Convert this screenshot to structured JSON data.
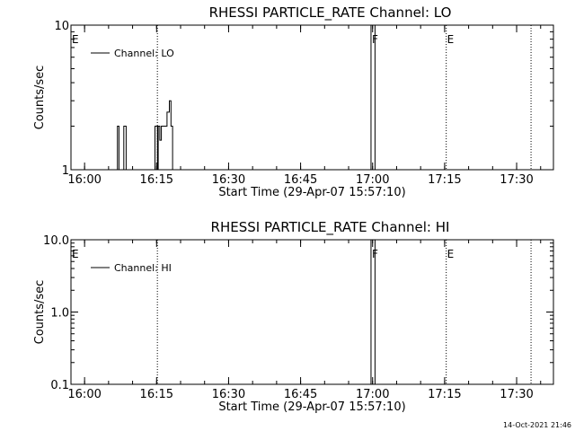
{
  "chart_data": [
    {
      "type": "line",
      "title": "RHESSI PARTICLE_RATE Channel: LO",
      "ylabel": "Counts/sec",
      "xlabel": "Start Time (29-Apr-07 15:57:10)",
      "xlim": [
        "15:57:10",
        "17:37:40"
      ],
      "ylim": [
        1,
        10
      ],
      "yscale": "log",
      "xticks": [
        "16:00",
        "16:15",
        "16:30",
        "16:45",
        "17:00",
        "17:15",
        "17:30"
      ],
      "yticks": [
        "1",
        "10"
      ],
      "legend": {
        "position": "top-left",
        "entries": [
          "Channel: LO"
        ]
      },
      "series": [
        {
          "name": "Channel: LO",
          "points": [
            [
              "16:06:50",
              1
            ],
            [
              "16:06:50",
              2
            ],
            [
              "16:07:10",
              2
            ],
            [
              "16:07:10",
              1
            ],
            [
              "16:08:10",
              1
            ],
            [
              "16:08:10",
              2
            ],
            [
              "16:08:40",
              2
            ],
            [
              "16:08:40",
              1
            ],
            [
              "16:14:40",
              1
            ],
            [
              "16:14:40",
              2
            ],
            [
              "16:15:10",
              2
            ],
            [
              "16:15:10",
              1
            ],
            [
              "16:15:20",
              1
            ],
            [
              "16:15:20",
              2
            ],
            [
              "16:15:40",
              2
            ],
            [
              "16:15:40",
              1.6
            ],
            [
              "16:16:00",
              1.6
            ],
            [
              "16:16:00",
              2
            ],
            [
              "16:17:10",
              2
            ],
            [
              "16:17:10",
              2.5
            ],
            [
              "16:17:40",
              2.5
            ],
            [
              "16:17:40",
              3
            ],
            [
              "16:18:00",
              3
            ],
            [
              "16:18:00",
              2
            ],
            [
              "16:18:20",
              2
            ],
            [
              "16:18:20",
              1
            ]
          ]
        }
      ],
      "vlines": [
        {
          "x": "16:15:10",
          "style": "dotted"
        },
        {
          "x": "16:59:40",
          "style": "solid"
        },
        {
          "x": "17:00:30",
          "style": "solid"
        },
        {
          "x": "17:15:20",
          "style": "dotted"
        },
        {
          "x": "17:33:00",
          "style": "dotted"
        }
      ],
      "markers": [
        {
          "label": "E",
          "x": "15:57:10"
        },
        {
          "label": "F",
          "x": "16:59:40"
        },
        {
          "label": "E",
          "x": "17:15:20"
        }
      ]
    },
    {
      "type": "line",
      "title": "RHESSI PARTICLE_RATE Channel: HI",
      "ylabel": "Counts/sec",
      "xlabel": "Start Time (29-Apr-07 15:57:10)",
      "xlim": [
        "15:57:10",
        "17:37:40"
      ],
      "ylim": [
        0.1,
        10
      ],
      "yscale": "log",
      "xticks": [
        "16:00",
        "16:15",
        "16:30",
        "16:45",
        "17:00",
        "17:15",
        "17:30"
      ],
      "yticks": [
        "0.1",
        "1.0",
        "10.0"
      ],
      "legend": {
        "position": "top-left",
        "entries": [
          "Channel: HI"
        ]
      },
      "series": [
        {
          "name": "Channel: HI",
          "points": []
        }
      ],
      "vlines": [
        {
          "x": "16:15:10",
          "style": "dotted"
        },
        {
          "x": "16:59:40",
          "style": "solid"
        },
        {
          "x": "17:00:30",
          "style": "solid"
        },
        {
          "x": "17:15:20",
          "style": "dotted"
        },
        {
          "x": "17:33:00",
          "style": "dotted"
        }
      ],
      "markers": [
        {
          "label": "E",
          "x": "15:57:10"
        },
        {
          "label": "F",
          "x": "16:59:40"
        },
        {
          "label": "E",
          "x": "17:15:20"
        }
      ]
    }
  ],
  "footer": {
    "timestamp": "14-Oct-2021 21:46"
  }
}
